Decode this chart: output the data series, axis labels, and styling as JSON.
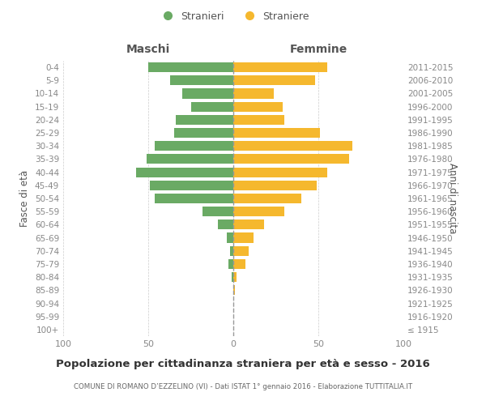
{
  "age_groups": [
    "100+",
    "95-99",
    "90-94",
    "85-89",
    "80-84",
    "75-79",
    "70-74",
    "65-69",
    "60-64",
    "55-59",
    "50-54",
    "45-49",
    "40-44",
    "35-39",
    "30-34",
    "25-29",
    "20-24",
    "15-19",
    "10-14",
    "5-9",
    "0-4"
  ],
  "birth_years": [
    "≤ 1915",
    "1916-1920",
    "1921-1925",
    "1926-1930",
    "1931-1935",
    "1936-1940",
    "1941-1945",
    "1946-1950",
    "1951-1955",
    "1956-1960",
    "1961-1965",
    "1966-1970",
    "1971-1975",
    "1976-1980",
    "1981-1985",
    "1986-1990",
    "1991-1995",
    "1996-2000",
    "2001-2005",
    "2006-2010",
    "2011-2015"
  ],
  "males": [
    0,
    0,
    0,
    0,
    1,
    3,
    2,
    4,
    9,
    18,
    46,
    49,
    57,
    51,
    46,
    35,
    34,
    25,
    30,
    37,
    50
  ],
  "females": [
    0,
    0,
    0,
    1,
    2,
    7,
    9,
    12,
    18,
    30,
    40,
    49,
    55,
    68,
    70,
    51,
    30,
    29,
    24,
    48,
    55
  ],
  "male_color": "#6aaa64",
  "female_color": "#f5b82e",
  "male_label": "Stranieri",
  "female_label": "Straniere",
  "title": "Popolazione per cittadinanza straniera per età e sesso - 2016",
  "subtitle": "COMUNE DI ROMANO D’EZZELINO (VI) - Dati ISTAT 1° gennaio 2016 - Elaborazione TUTTITALIA.IT",
  "ylabel_left": "Fasce di età",
  "ylabel_right": "Anni di nascita",
  "xlabel_maschi": "Maschi",
  "xlabel_femmine": "Femmine",
  "xlim": 100,
  "background_color": "#ffffff",
  "grid_color": "#cccccc",
  "tick_label_color": "#888888",
  "axis_label_color": "#555555"
}
